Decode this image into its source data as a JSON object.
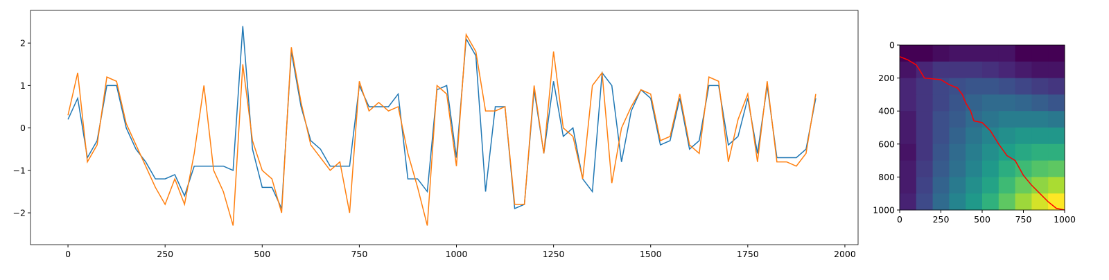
{
  "chart_data": [
    {
      "type": "line",
      "x": [
        0,
        25,
        50,
        75,
        100,
        125,
        150,
        175,
        200,
        225,
        250,
        275,
        300,
        325,
        350,
        375,
        400,
        425,
        450,
        475,
        500,
        525,
        550,
        575,
        600,
        625,
        650,
        675,
        700,
        725,
        750,
        775,
        800,
        825,
        850,
        875,
        900,
        925,
        950,
        975,
        1000,
        1025,
        1050,
        1075,
        1100,
        1125,
        1150,
        1175,
        1200,
        1225,
        1250,
        1275,
        1300,
        1325,
        1350,
        1375,
        1400,
        1425,
        1450,
        1475,
        1500,
        1525,
        1550,
        1575,
        1600,
        1625,
        1650,
        1675,
        1700,
        1725,
        1750,
        1775,
        1800,
        1825,
        1850,
        1875,
        1900,
        1925
      ],
      "series": [
        {
          "color": "#1f77b4",
          "values": [
            0.2,
            0.7,
            -0.7,
            -0.3,
            1.0,
            1.0,
            0.0,
            -0.5,
            -0.8,
            -1.2,
            -1.2,
            -1.1,
            -1.6,
            -0.9,
            -0.9,
            -0.9,
            -0.9,
            -1.0,
            2.4,
            -0.5,
            -1.4,
            -1.4,
            -1.9,
            1.8,
            0.5,
            -0.3,
            -0.5,
            -0.9,
            -0.9,
            -0.9,
            1.0,
            0.5,
            0.5,
            0.5,
            0.8,
            -1.2,
            -1.2,
            -1.5,
            0.9,
            1.0,
            -0.7,
            2.1,
            1.7,
            -1.5,
            0.5,
            0.5,
            -1.9,
            -1.8,
            0.9,
            -0.6,
            1.1,
            -0.2,
            0.0,
            -1.2,
            -1.5,
            1.3,
            1.0,
            -0.8,
            0.4,
            0.9,
            0.7,
            -0.4,
            -0.3,
            0.7,
            -0.5,
            -0.3,
            1.0,
            1.0,
            -0.4,
            -0.2,
            0.7,
            -0.6,
            1.0,
            -0.7,
            -0.7,
            -0.7,
            -0.5,
            0.7
          ]
        },
        {
          "color": "#ff7f0e",
          "values": [
            0.3,
            1.3,
            -0.8,
            -0.4,
            1.2,
            1.1,
            0.1,
            -0.4,
            -0.9,
            -1.4,
            -1.8,
            -1.2,
            -1.8,
            -0.6,
            1.0,
            -1.0,
            -1.5,
            -2.3,
            1.5,
            -0.3,
            -1.0,
            -1.2,
            -2.0,
            1.9,
            0.6,
            -0.4,
            -0.7,
            -1.0,
            -0.8,
            -2.0,
            1.1,
            0.4,
            0.6,
            0.4,
            0.5,
            -0.6,
            -1.4,
            -2.3,
            1.0,
            0.8,
            -0.9,
            2.2,
            1.8,
            0.4,
            0.4,
            0.5,
            -1.8,
            -1.8,
            1.0,
            -0.6,
            1.8,
            0.0,
            -0.2,
            -1.2,
            1.0,
            1.3,
            -1.3,
            0.0,
            0.5,
            0.9,
            0.8,
            -0.3,
            -0.2,
            0.8,
            -0.4,
            -0.6,
            1.2,
            1.1,
            -0.8,
            0.2,
            0.8,
            -0.8,
            1.1,
            -0.8,
            -0.8,
            -0.9,
            -0.6,
            0.8
          ]
        }
      ],
      "xlim": [
        -96.5,
        2034
      ],
      "ylim": [
        -2.75,
        2.77
      ],
      "xticks": [
        0,
        250,
        500,
        750,
        1000,
        1250,
        1500,
        1750,
        2000
      ],
      "yticks": [
        {
          "value": -2,
          "label": "−2"
        },
        {
          "value": -1,
          "label": "−1"
        },
        0,
        1,
        2
      ]
    },
    {
      "type": "heatmap",
      "colormap": "viridis",
      "z": [
        [
          0.05,
          0.05,
          0.08,
          0.1,
          0.1,
          0.1,
          0.1,
          0.05,
          0.05,
          0.05
        ],
        [
          0.1,
          0.15,
          0.2,
          0.2,
          0.2,
          0.18,
          0.15,
          0.12,
          0.1,
          0.1
        ],
        [
          0.15,
          0.2,
          0.25,
          0.28,
          0.3,
          0.3,
          0.28,
          0.25,
          0.22,
          0.2
        ],
        [
          0.15,
          0.2,
          0.25,
          0.3,
          0.35,
          0.38,
          0.38,
          0.36,
          0.33,
          0.3
        ],
        [
          0.12,
          0.2,
          0.28,
          0.32,
          0.38,
          0.42,
          0.45,
          0.45,
          0.45,
          0.43
        ],
        [
          0.12,
          0.2,
          0.28,
          0.35,
          0.42,
          0.48,
          0.52,
          0.55,
          0.55,
          0.55
        ],
        [
          0.1,
          0.2,
          0.3,
          0.38,
          0.45,
          0.52,
          0.58,
          0.62,
          0.65,
          0.65
        ],
        [
          0.12,
          0.22,
          0.32,
          0.4,
          0.48,
          0.56,
          0.64,
          0.7,
          0.74,
          0.76
        ],
        [
          0.12,
          0.24,
          0.35,
          0.44,
          0.52,
          0.6,
          0.7,
          0.78,
          0.84,
          0.88
        ],
        [
          0.14,
          0.26,
          0.38,
          0.48,
          0.56,
          0.66,
          0.76,
          0.86,
          0.94,
          1.0
        ]
      ],
      "path": {
        "color": "#ff0000",
        "x": [
          0,
          50,
          100,
          120,
          150,
          250,
          300,
          350,
          380,
          400,
          430,
          450,
          500,
          550,
          600,
          650,
          700,
          750,
          800,
          850,
          900,
          950,
          1000
        ],
        "y": [
          70,
          90,
          120,
          150,
          200,
          210,
          240,
          260,
          300,
          350,
          400,
          460,
          470,
          520,
          600,
          670,
          700,
          790,
          850,
          900,
          950,
          990,
          1000
        ]
      },
      "xlim": [
        0,
        1000
      ],
      "ylim": [
        1000,
        0
      ],
      "xticks": [
        0,
        250,
        500,
        750,
        1000
      ],
      "yticks": [
        0,
        200,
        400,
        600,
        800,
        1000
      ]
    }
  ]
}
